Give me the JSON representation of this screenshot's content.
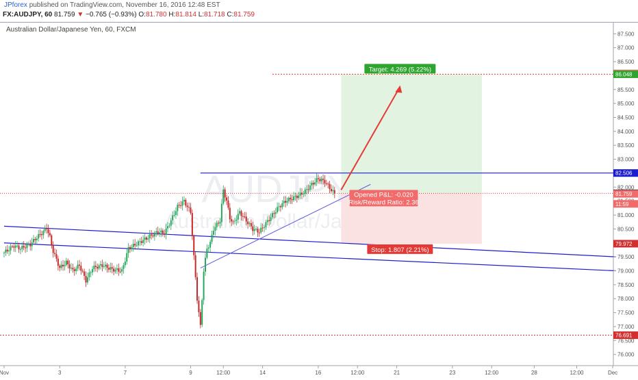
{
  "header": {
    "author": "JPforex",
    "published_text": "published on TradingView.com, November 16, 2016 12:48 EST",
    "symbol": "FX:AUDJPY, 60",
    "last": "81.759",
    "change": "−0.765 (−0.93%)",
    "o_label": "O:",
    "open": "81.780",
    "h_label": "H:",
    "high": "81.814",
    "l_label": "L:",
    "low": "81.718",
    "c_label": "C:",
    "close": "81.759"
  },
  "chart_data": {
    "type": "candlestick",
    "title": "Australian Dollar/Japanese Yen, 60, FXCM",
    "watermark_symbol": "AUDJPY, 60",
    "watermark_name": "Australian Dollar/Japanese Yen",
    "ylim": [
      75.6,
      87.9
    ],
    "y_ticks": [
      76.0,
      76.5,
      77.0,
      77.5,
      78.0,
      78.5,
      79.0,
      79.5,
      80.0,
      80.5,
      81.0,
      81.5,
      82.0,
      82.5,
      83.0,
      83.5,
      84.0,
      84.5,
      85.0,
      85.5,
      86.0,
      86.5,
      87.0,
      87.5
    ],
    "x_ticks": [
      {
        "i": 0,
        "label": "Nov"
      },
      {
        "i": 17,
        "label": "3"
      },
      {
        "i": 37,
        "label": "7"
      },
      {
        "i": 57,
        "label": "9"
      },
      {
        "i": 67,
        "label": "12:00"
      },
      {
        "i": 79,
        "label": "14"
      },
      {
        "i": 96,
        "label": "16"
      },
      {
        "i": 108,
        "label": "12:00"
      },
      {
        "i": 120,
        "label": "21"
      },
      {
        "i": 137,
        "label": "23"
      },
      {
        "i": 149,
        "label": "12:00"
      },
      {
        "i": 162,
        "label": "28"
      },
      {
        "i": 175,
        "label": "12:00"
      },
      {
        "i": 186,
        "label": "Dec"
      }
    ],
    "price_path": [
      [
        0,
        79.65
      ],
      [
        3,
        79.9
      ],
      [
        5,
        79.8
      ],
      [
        8,
        79.95
      ],
      [
        10,
        80.2
      ],
      [
        12,
        80.4
      ],
      [
        13,
        80.55
      ],
      [
        14,
        80.2
      ],
      [
        15,
        79.7
      ],
      [
        16,
        79.4
      ],
      [
        17,
        79.1
      ],
      [
        19,
        79.3
      ],
      [
        21,
        79.0
      ],
      [
        23,
        79.2
      ],
      [
        25,
        78.65
      ],
      [
        27,
        79.1
      ],
      [
        30,
        79.2
      ],
      [
        33,
        79.05
      ],
      [
        36,
        79.0
      ],
      [
        38,
        79.8
      ],
      [
        41,
        80.0
      ],
      [
        44,
        80.2
      ],
      [
        47,
        80.4
      ],
      [
        49,
        80.35
      ],
      [
        51,
        80.8
      ],
      [
        53,
        81.3
      ],
      [
        55,
        81.5
      ],
      [
        57,
        81.1
      ],
      [
        58,
        79.5
      ],
      [
        59,
        78.0
      ],
      [
        60,
        77.0
      ],
      [
        61,
        79.0
      ],
      [
        62,
        79.8
      ],
      [
        63,
        80.0
      ],
      [
        64,
        80.5
      ],
      [
        66,
        80.8
      ],
      [
        67,
        81.9
      ],
      [
        68,
        81.5
      ],
      [
        69,
        80.9
      ],
      [
        70,
        80.7
      ],
      [
        72,
        81.1
      ],
      [
        74,
        80.8
      ],
      [
        76,
        80.5
      ],
      [
        78,
        80.4
      ],
      [
        80,
        80.7
      ],
      [
        82,
        81.0
      ],
      [
        84,
        81.3
      ],
      [
        86,
        81.5
      ],
      [
        88,
        81.6
      ],
      [
        90,
        81.7
      ],
      [
        92,
        81.85
      ],
      [
        94,
        82.1
      ],
      [
        96,
        82.3
      ],
      [
        98,
        82.2
      ],
      [
        100,
        81.9
      ],
      [
        101,
        81.76
      ]
    ],
    "lines": {
      "resistance_82_506": 82.506,
      "current_81_779": 81.779,
      "low_76_691": 76.691,
      "target_86_048": 86.048
    },
    "channel_top": {
      "start": [
        0,
        80.6
      ],
      "end": [
        187,
        79.5
      ]
    },
    "channel_bottom": {
      "start": [
        0,
        80.0
      ],
      "end": [
        187,
        79.0
      ]
    },
    "trendline": {
      "start": [
        60,
        79.1
      ],
      "end": [
        112,
        82.1
      ]
    },
    "position": {
      "entry": 81.779,
      "target": 86.048,
      "stop": 79.972,
      "x_start": 103,
      "x_end": 146,
      "target_label": "Target: 4.269 (5.22%)",
      "stop_label": "Stop: 1.807 (2.21%)",
      "pnl_label": "Opened P&L: -0.020",
      "rr_label": "Risk/Reward Ratio: 2.36"
    },
    "arrow": {
      "from": [
        103,
        81.9
      ],
      "to": [
        121,
        85.6
      ]
    },
    "price_labels": [
      {
        "text": "86.077",
        "price": 86.077,
        "color": "#f26b6b"
      },
      {
        "text": "86.048",
        "price": 86.048,
        "color": "#2ea52e"
      },
      {
        "text": "82.506",
        "price": 82.506,
        "color": "#1c1ccf"
      },
      {
        "text": "81.779",
        "price": 81.779,
        "color": "#333333"
      },
      {
        "text": "81.759",
        "price": 81.759,
        "color": "#f26b6b"
      },
      {
        "text": "11:59",
        "price": 81.4,
        "color": "#f26b6b"
      },
      {
        "text": "79.972",
        "price": 79.972,
        "color": "#d32f2f"
      },
      {
        "text": "76.691",
        "price": 76.691,
        "color": "#d32f2f"
      }
    ],
    "colors": {
      "up": "#26a65b",
      "down": "#c62828",
      "blue": "#1c1ccf",
      "red": "#e53935",
      "green": "#2ea52e"
    }
  }
}
